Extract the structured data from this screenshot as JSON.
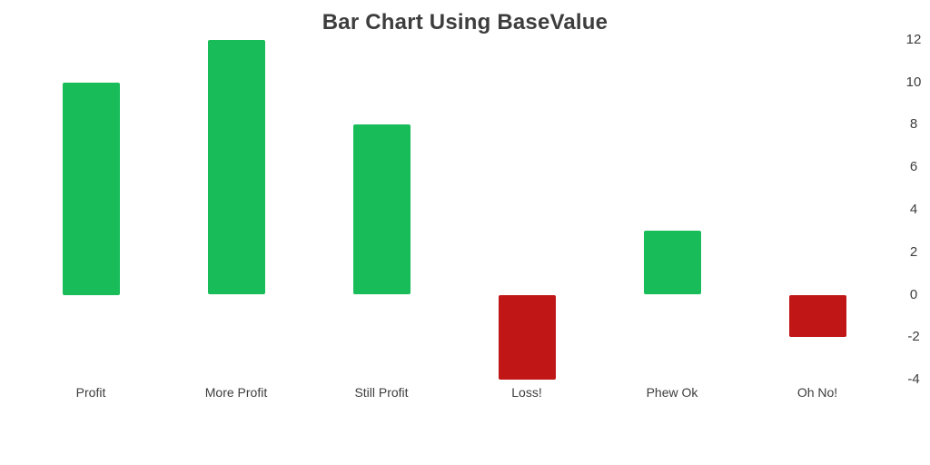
{
  "chart_data": {
    "type": "bar",
    "title": "Bar Chart Using BaseValue",
    "categories": [
      "Profit",
      "More Profit",
      "Still Profit",
      "Loss!",
      "Phew Ok",
      "Oh No!"
    ],
    "values": [
      10,
      12,
      8,
      -4,
      3,
      -2
    ],
    "base_value": 0,
    "yticks": [
      12,
      10,
      8,
      6,
      4,
      2,
      0,
      -2,
      -4
    ],
    "ylim": [
      -4,
      12
    ],
    "xlabel": "",
    "ylabel": "",
    "y_axis_position": "right",
    "grid": false,
    "legend": "none",
    "colors": {
      "positive_bar": "#18bd5a",
      "negative_bar": "#c01616",
      "title_text": "#3d3d3d",
      "axis_text": "#3d3d3d",
      "background": "#ffffff"
    }
  }
}
